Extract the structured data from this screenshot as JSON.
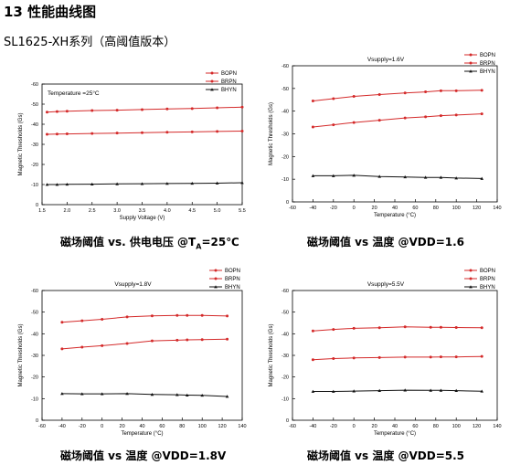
{
  "page": {
    "section_title": "13 性能曲线图",
    "subtitle": "SL1625-XH系列（高阈值版本）"
  },
  "charts": [
    {
      "caption_main": "磁场阈值 vs. 供电电压 @T",
      "caption_sub": "A",
      "caption_end": "=25℃",
      "title": "Temperature =25°C",
      "xlabel": "Supply Voltage (V)",
      "ylabel": "Magnetic Thresholds (Gs)"
    },
    {
      "caption_main": "磁场阈值 vs 温度 @VDD=1.6",
      "title": "Vsupply=1.6V",
      "xlabel": "Temperature (°C)",
      "ylabel": "Magnetic Thresholds (Gs)"
    },
    {
      "caption_main": "磁场阈值 vs 温度 @VDD=1.8V",
      "title": "Vsupply=1.8V",
      "xlabel": "Temperature (°C)",
      "ylabel": "Magnetic Thresholds (Gs)"
    },
    {
      "caption_main": "磁场阈值 vs 温度 @VDD=5.5",
      "title": "Vsupply=5.5V",
      "xlabel": "Temperature (°C)",
      "ylabel": "Magnetic Thresholds (Gs)"
    }
  ],
  "chart_data": [
    {
      "type": "line",
      "title": "Temperature =25°C",
      "xlabel": "Supply Voltage (V)",
      "ylabel": "Magnetic Thresholds (Gs)",
      "xlim": [
        1.5,
        5.5
      ],
      "ylim": [
        0,
        -60
      ],
      "xticks": [
        "1.5",
        "2.0",
        "2.5",
        "3.0",
        "3.5",
        "4.0",
        "4.5",
        "5.0",
        "5.5"
      ],
      "yticks": [
        "0",
        "-10",
        "-20",
        "-30",
        "-40",
        "-50",
        "-60"
      ],
      "legend_position": "top-right",
      "x": [
        1.6,
        1.8,
        2.0,
        2.5,
        3.0,
        3.5,
        4.0,
        4.5,
        5.0,
        5.5
      ],
      "series": [
        {
          "name": "BOPN",
          "color": "#d42a2a",
          "marker": "circle",
          "values": [
            -46,
            -46.3,
            -46.5,
            -46.8,
            -47,
            -47.3,
            -47.6,
            -47.8,
            -48.2,
            -48.5
          ]
        },
        {
          "name": "BRPN",
          "color": "#d42a2a",
          "marker": "circle",
          "values": [
            -35,
            -35.1,
            -35.2,
            -35.4,
            -35.6,
            -35.8,
            -36,
            -36.2,
            -36.4,
            -36.6
          ]
        },
        {
          "name": "BHYN",
          "color": "#111111",
          "marker": "triangle",
          "values": [
            -10,
            -10,
            -10.1,
            -10.2,
            -10.3,
            -10.4,
            -10.5,
            -10.6,
            -10.7,
            -10.9
          ]
        }
      ]
    },
    {
      "type": "line",
      "title": "Vsupply=1.6V",
      "xlabel": "Temperature (°C)",
      "ylabel": "Magnetic Thresholds (Gs)",
      "xlim": [
        -60,
        140
      ],
      "ylim": [
        0,
        -60
      ],
      "xticks": [
        "-60",
        "-40",
        "-20",
        "0",
        "20",
        "40",
        "60",
        "80",
        "100",
        "120",
        "140"
      ],
      "yticks": [
        "0",
        "-10",
        "-20",
        "-30",
        "-40",
        "-50",
        "-60"
      ],
      "legend_position": "top-right",
      "x": [
        -40,
        -20,
        0,
        25,
        50,
        70,
        85,
        100,
        125
      ],
      "series": [
        {
          "name": "BOPN",
          "color": "#d42a2a",
          "marker": "circle",
          "values": [
            -44.5,
            -45.5,
            -46.5,
            -47.3,
            -48,
            -48.5,
            -49,
            -49,
            -49.2
          ]
        },
        {
          "name": "BRPN",
          "color": "#d42a2a",
          "marker": "circle",
          "values": [
            -33,
            -34,
            -35,
            -36,
            -37,
            -37.5,
            -38,
            -38.3,
            -38.8
          ]
        },
        {
          "name": "BHYN",
          "color": "#111111",
          "marker": "triangle",
          "values": [
            -11.5,
            -11.5,
            -11.7,
            -11.2,
            -11,
            -10.8,
            -10.8,
            -10.5,
            -10.3
          ]
        }
      ]
    },
    {
      "type": "line",
      "title": "Vsupply=1.8V",
      "xlabel": "Temperature (°C)",
      "ylabel": "Magnetic Thresholds (Gs)",
      "xlim": [
        -60,
        140
      ],
      "ylim": [
        0,
        -60
      ],
      "xticks": [
        "-60",
        "-40",
        "-20",
        "0",
        "20",
        "40",
        "60",
        "80",
        "100",
        "120",
        "140"
      ],
      "yticks": [
        "0",
        "-10",
        "-20",
        "-30",
        "-40",
        "-50",
        "-60"
      ],
      "legend_position": "top-right",
      "x": [
        -40,
        -20,
        0,
        25,
        50,
        75,
        85,
        100,
        125
      ],
      "series": [
        {
          "name": "BOPN",
          "color": "#d42a2a",
          "marker": "circle",
          "values": [
            -45.3,
            -46,
            -46.7,
            -47.8,
            -48.3,
            -48.5,
            -48.5,
            -48.5,
            -48.2
          ]
        },
        {
          "name": "BRPN",
          "color": "#d42a2a",
          "marker": "circle",
          "values": [
            -33,
            -33.8,
            -34.5,
            -35.5,
            -36.7,
            -37,
            -37.2,
            -37.3,
            -37.5
          ]
        },
        {
          "name": "BHYN",
          "color": "#111111",
          "marker": "triangle",
          "values": [
            -12.3,
            -12.2,
            -12.2,
            -12.3,
            -11.9,
            -11.8,
            -11.6,
            -11.5,
            -11
          ]
        }
      ]
    },
    {
      "type": "line",
      "title": "Vsupply=5.5V",
      "xlabel": "Temperature (°C)",
      "ylabel": "Magnetic Thresholds (Gs)",
      "xlim": [
        -60,
        140
      ],
      "ylim": [
        0,
        -60
      ],
      "xticks": [
        "-60",
        "-40",
        "-20",
        "0",
        "20",
        "40",
        "60",
        "80",
        "100",
        "120",
        "140"
      ],
      "yticks": [
        "0",
        "-10",
        "-20",
        "-30",
        "-40",
        "-50",
        "-60"
      ],
      "legend_position": "top-right",
      "x": [
        -40,
        -20,
        0,
        25,
        50,
        75,
        85,
        100,
        125
      ],
      "series": [
        {
          "name": "BOPN",
          "color": "#d42a2a",
          "marker": "circle",
          "values": [
            -41.3,
            -42,
            -42.5,
            -42.8,
            -43.2,
            -43,
            -43,
            -42.9,
            -42.8
          ]
        },
        {
          "name": "BRPN",
          "color": "#d42a2a",
          "marker": "circle",
          "values": [
            -28,
            -28.5,
            -28.8,
            -29,
            -29.2,
            -29.2,
            -29.3,
            -29.3,
            -29.5
          ]
        },
        {
          "name": "BHYN",
          "color": "#111111",
          "marker": "triangle",
          "values": [
            -13.3,
            -13.3,
            -13.5,
            -13.7,
            -13.9,
            -13.8,
            -13.8,
            -13.7,
            -13.4
          ]
        }
      ]
    }
  ]
}
